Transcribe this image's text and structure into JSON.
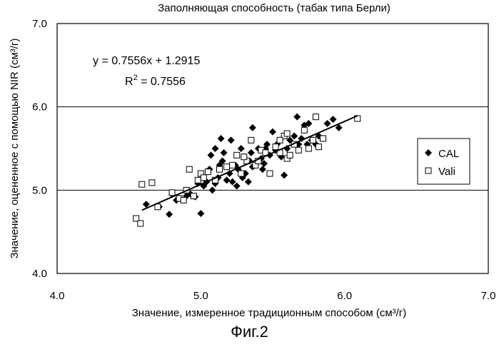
{
  "chart_data": {
    "type": "scatter",
    "title": "Заполняющая способность (табак типа Берли)",
    "xlabel": "Значение, измеренное традиционным способом (см³/г)",
    "ylabel": "Значение, оцененное с помощью NIR (см³/г)",
    "xlim": [
      4.0,
      7.0
    ],
    "ylim": [
      4.0,
      7.0
    ],
    "x_ticks": [
      "4.0",
      "5.0",
      "6.0",
      "7.0"
    ],
    "y_ticks": [
      "4.0",
      "5.0",
      "6.0",
      "7.0"
    ],
    "grid": "horizontal",
    "legend_position": "right",
    "equation": "y = 0.7556x + 1.2915",
    "r2_prefix": "R",
    "r2_exp": "2",
    "r2_value": " = 0.7556",
    "trendline": {
      "slope": 0.7556,
      "intercept": 1.2915,
      "x_range": [
        4.59,
        6.09
      ]
    },
    "series": [
      {
        "name": "CAL",
        "marker": "diamond",
        "color": "#000000",
        "points": [
          [
            4.62,
            4.83
          ],
          [
            4.71,
            4.8
          ],
          [
            4.78,
            4.71
          ],
          [
            4.8,
            4.95
          ],
          [
            4.83,
            4.88
          ],
          [
            4.85,
            4.9
          ],
          [
            4.9,
            4.93
          ],
          [
            4.93,
            4.95
          ],
          [
            4.96,
            4.92
          ],
          [
            4.98,
            5.08
          ],
          [
            5.0,
            4.72
          ],
          [
            5.02,
            5.05
          ],
          [
            5.04,
            5.1
          ],
          [
            5.06,
            5.25
          ],
          [
            5.07,
            5.42
          ],
          [
            5.08,
            5.0
          ],
          [
            5.1,
            5.08
          ],
          [
            5.12,
            5.15
          ],
          [
            5.13,
            5.3
          ],
          [
            5.15,
            5.35
          ],
          [
            5.16,
            5.45
          ],
          [
            5.18,
            5.12
          ],
          [
            5.2,
            5.2
          ],
          [
            5.21,
            5.6
          ],
          [
            5.22,
            5.1
          ],
          [
            5.24,
            5.3
          ],
          [
            5.26,
            5.25
          ],
          [
            5.28,
            5.5
          ],
          [
            5.29,
            5.15
          ],
          [
            5.3,
            5.4
          ],
          [
            5.31,
            5.2
          ],
          [
            5.33,
            5.1
          ],
          [
            5.34,
            5.35
          ],
          [
            5.35,
            5.45
          ],
          [
            5.36,
            5.28
          ],
          [
            5.38,
            5.3
          ],
          [
            5.4,
            5.5
          ],
          [
            5.42,
            5.38
          ],
          [
            5.43,
            5.25
          ],
          [
            5.45,
            5.5
          ],
          [
            5.46,
            5.55
          ],
          [
            5.48,
            5.42
          ],
          [
            5.5,
            5.7
          ],
          [
            5.52,
            5.48
          ],
          [
            5.53,
            5.55
          ],
          [
            5.55,
            5.6
          ],
          [
            5.56,
            5.4
          ],
          [
            5.58,
            5.18
          ],
          [
            5.6,
            5.5
          ],
          [
            5.62,
            5.6
          ],
          [
            5.65,
            5.65
          ],
          [
            5.67,
            5.88
          ],
          [
            5.68,
            5.55
          ],
          [
            5.7,
            5.62
          ],
          [
            5.72,
            5.78
          ],
          [
            5.74,
            5.55
          ],
          [
            5.75,
            5.8
          ],
          [
            5.77,
            5.6
          ],
          [
            5.78,
            5.6
          ],
          [
            5.8,
            5.55
          ],
          [
            5.82,
            5.65
          ],
          [
            5.85,
            5.62
          ],
          [
            5.88,
            5.8
          ],
          [
            5.92,
            5.85
          ],
          [
            5.96,
            5.75
          ],
          [
            5.36,
            5.75
          ],
          [
            5.1,
            5.5
          ],
          [
            5.25,
            5.05
          ],
          [
            5.44,
            5.32
          ],
          [
            5.14,
            5.62
          ]
        ]
      },
      {
        "name": "Vali",
        "marker": "square-open",
        "color": "#000000",
        "points": [
          [
            4.55,
            4.66
          ],
          [
            4.58,
            4.6
          ],
          [
            4.59,
            5.07
          ],
          [
            4.66,
            5.09
          ],
          [
            4.7,
            4.8
          ],
          [
            4.8,
            4.97
          ],
          [
            4.85,
            4.9
          ],
          [
            4.88,
            4.88
          ],
          [
            4.9,
            5.0
          ],
          [
            4.92,
            5.25
          ],
          [
            4.95,
            4.93
          ],
          [
            4.98,
            5.12
          ],
          [
            5.0,
            5.2
          ],
          [
            5.02,
            5.15
          ],
          [
            5.05,
            5.22
          ],
          [
            5.1,
            5.12
          ],
          [
            5.13,
            5.25
          ],
          [
            5.18,
            5.28
          ],
          [
            5.22,
            5.3
          ],
          [
            5.25,
            5.42
          ],
          [
            5.28,
            5.2
          ],
          [
            5.32,
            5.35
          ],
          [
            5.35,
            5.6
          ],
          [
            5.38,
            5.3
          ],
          [
            5.4,
            5.35
          ],
          [
            5.42,
            5.48
          ],
          [
            5.45,
            5.45
          ],
          [
            5.48,
            5.2
          ],
          [
            5.52,
            5.52
          ],
          [
            5.55,
            5.45
          ],
          [
            5.58,
            5.65
          ],
          [
            5.6,
            5.38
          ],
          [
            5.62,
            5.42
          ],
          [
            5.65,
            5.55
          ],
          [
            5.68,
            5.48
          ],
          [
            5.72,
            5.72
          ],
          [
            5.75,
            5.5
          ],
          [
            5.78,
            5.6
          ],
          [
            5.8,
            5.88
          ],
          [
            5.82,
            5.52
          ],
          [
            5.85,
            5.62
          ],
          [
            6.09,
            5.86
          ],
          [
            5.55,
            5.6
          ],
          [
            5.3,
            5.4
          ],
          [
            5.6,
            5.68
          ]
        ]
      }
    ]
  },
  "figure_caption": "Фиг.2"
}
